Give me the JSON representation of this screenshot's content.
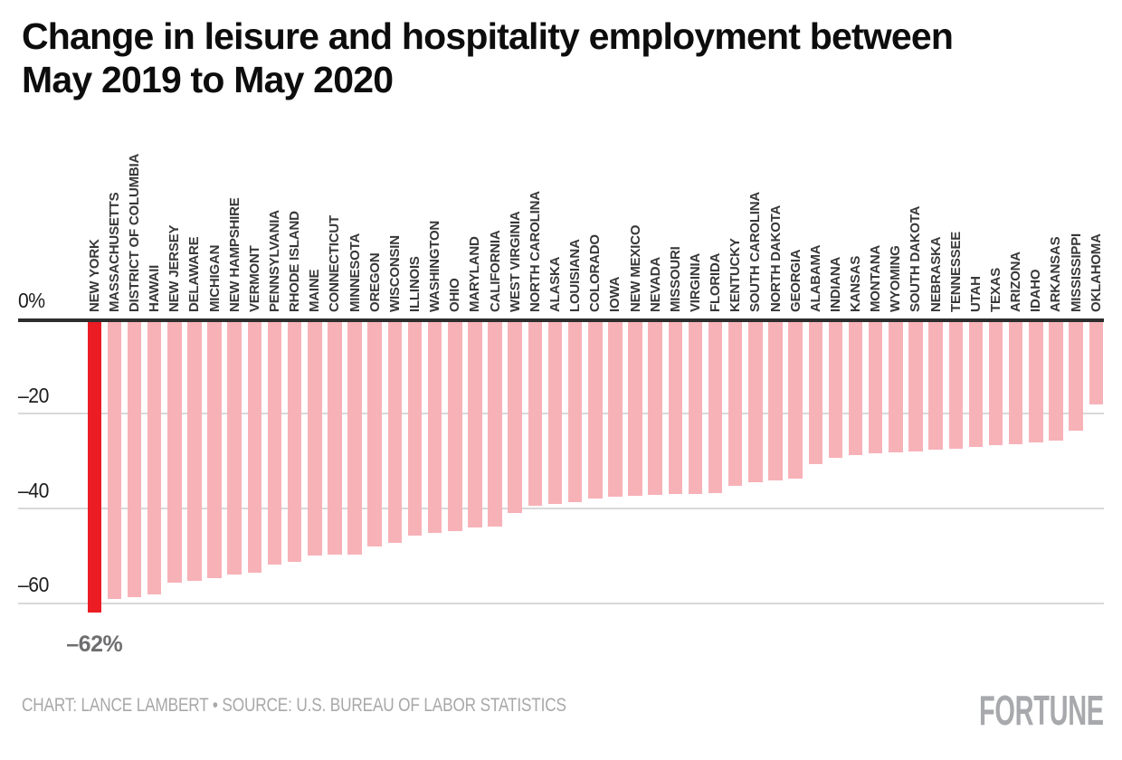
{
  "header": {
    "title_line1": "Change in leisure and hospitality employment between",
    "title_line2": "May 2019 to May 2020"
  },
  "chart_data": {
    "type": "bar",
    "title": "Change in leisure and hospitality employment between May 2019 to May 2020",
    "unit": "%",
    "ylim": [
      -66,
      0
    ],
    "grid": "horizontal",
    "axis": {
      "ticks": [
        {
          "value": 0,
          "label": "0%"
        },
        {
          "value": -20,
          "label": "–20"
        },
        {
          "value": -40,
          "label": "–40"
        },
        {
          "value": -60,
          "label": "–60"
        }
      ]
    },
    "categories": [
      "NEW YORK",
      "MASSACHUSETTS",
      "DISTRICT OF COLUMBIA",
      "HAWAII",
      "NEW JERSEY",
      "DELAWARE",
      "MICHIGAN",
      "NEW HAMPSHIRE",
      "VERMONT",
      "PENNSYLVANIA",
      "RHODE ISLAND",
      "MAINE",
      "CONNECTICUT",
      "MINNESOTA",
      "OREGON",
      "WISCONSIN",
      "ILLINOIS",
      "WASHINGTON",
      "OHIO",
      "MARYLAND",
      "CALIFORNIA",
      "WEST VIRGINIA",
      "NORTH CAROLINA",
      "ALASKA",
      "LOUISIANA",
      "COLORADO",
      "IOWA",
      "NEW MEXICO",
      "NEVADA",
      "MISSOURI",
      "VIRGINIA",
      "FLORIDA",
      "KENTUCKY",
      "SOUTH CAROLINA",
      "NORTH DAKOTA",
      "GEORGIA",
      "ALABAMA",
      "INDIANA",
      "KANSAS",
      "MONTANA",
      "WYOMING",
      "SOUTH DAKOTA",
      "NEBRASKA",
      "TENNESSEE",
      "UTAH",
      "TEXAS",
      "ARIZONA",
      "IDAHO",
      "ARKANSAS",
      "MISSISSIPPI",
      "OKLAHOMA"
    ],
    "values": [
      -62,
      -59.2,
      -58.8,
      -58.2,
      -55.6,
      -55.2,
      -54.7,
      -53.9,
      -53.6,
      -51.9,
      -51.2,
      -50,
      -49.8,
      -49.7,
      -48,
      -47.3,
      -45.8,
      -45.1,
      -44.7,
      -44.1,
      -43.9,
      -41,
      -39.4,
      -39,
      -38.6,
      -37.9,
      -37.6,
      -37.4,
      -37.2,
      -37,
      -36.9,
      -36.8,
      -35.3,
      -34.4,
      -34,
      -33.6,
      -30.7,
      -29.2,
      -28.7,
      -28.4,
      -28.2,
      -27.9,
      -27.5,
      -27.3,
      -27,
      -26.7,
      -26.4,
      -26,
      -25.6,
      -23.5,
      -18
    ],
    "highlight_index": 0,
    "annotation": {
      "text": "–62%",
      "target": "NEW YORK"
    },
    "colors": {
      "bar": "#f7b2b8",
      "highlight": "#eb1c24",
      "zero_axis": "#2d2d2d",
      "gridline": "#d9d9d9"
    },
    "legend": "none"
  },
  "footer": {
    "attribution": "CHART: LANCE LAMBERT • SOURCE: U.S. BUREAU OF LABOR STATISTICS",
    "logo": "FORTUNE"
  }
}
